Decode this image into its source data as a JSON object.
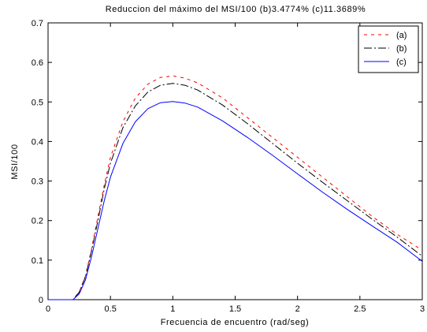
{
  "chart_data": {
    "type": "line",
    "title": "Reduccion del máximo del MSI/100 (b)3.4774% (c)11.3689%",
    "xlabel": "Frecuencia de encuentro (rad/seg)",
    "ylabel": "MSI/100",
    "xlim": [
      0,
      3
    ],
    "ylim": [
      0,
      0.7
    ],
    "xticks": [
      "0",
      "0.5",
      "1",
      "1.5",
      "2",
      "2.5",
      "3"
    ],
    "yticks": [
      "0",
      "0.1",
      "0.2",
      "0.3",
      "0.4",
      "0.5",
      "0.6",
      "0.7"
    ],
    "grid": false,
    "legend_position": "top-right",
    "series": [
      {
        "name": "(a)",
        "color": "#ff0000",
        "style": "dashed",
        "x": [
          0,
          0.2,
          0.25,
          0.3,
          0.35,
          0.4,
          0.45,
          0.5,
          0.6,
          0.7,
          0.8,
          0.9,
          1.0,
          1.1,
          1.2,
          1.4,
          1.6,
          1.8,
          2.0,
          2.2,
          2.4,
          2.6,
          2.8,
          3.0
        ],
        "y": [
          0,
          0.0,
          0.02,
          0.06,
          0.13,
          0.21,
          0.29,
          0.36,
          0.45,
          0.51,
          0.545,
          0.562,
          0.566,
          0.56,
          0.548,
          0.51,
          0.46,
          0.41,
          0.36,
          0.31,
          0.26,
          0.21,
          0.165,
          0.125
        ]
      },
      {
        "name": "(b)",
        "color": "#000000",
        "style": "dashdot",
        "x": [
          0,
          0.2,
          0.25,
          0.3,
          0.35,
          0.4,
          0.45,
          0.5,
          0.6,
          0.7,
          0.8,
          0.9,
          1.0,
          1.1,
          1.2,
          1.4,
          1.6,
          1.8,
          2.0,
          2.2,
          2.4,
          2.6,
          2.8,
          3.0
        ],
        "y": [
          0,
          0.0,
          0.019,
          0.058,
          0.125,
          0.2,
          0.28,
          0.345,
          0.435,
          0.49,
          0.525,
          0.542,
          0.547,
          0.542,
          0.53,
          0.492,
          0.445,
          0.395,
          0.345,
          0.297,
          0.25,
          0.203,
          0.158,
          0.11
        ]
      },
      {
        "name": "(c)",
        "color": "#0000ff",
        "style": "solid",
        "x": [
          0,
          0.2,
          0.25,
          0.3,
          0.35,
          0.4,
          0.45,
          0.5,
          0.6,
          0.7,
          0.8,
          0.9,
          1.0,
          1.1,
          1.2,
          1.4,
          1.6,
          1.8,
          2.0,
          2.2,
          2.4,
          2.6,
          2.8,
          3.0
        ],
        "y": [
          0,
          0.0,
          0.015,
          0.05,
          0.11,
          0.18,
          0.25,
          0.31,
          0.395,
          0.45,
          0.483,
          0.498,
          0.501,
          0.497,
          0.487,
          0.452,
          0.41,
          0.365,
          0.318,
          0.272,
          0.228,
          0.186,
          0.145,
          0.097
        ]
      }
    ]
  }
}
